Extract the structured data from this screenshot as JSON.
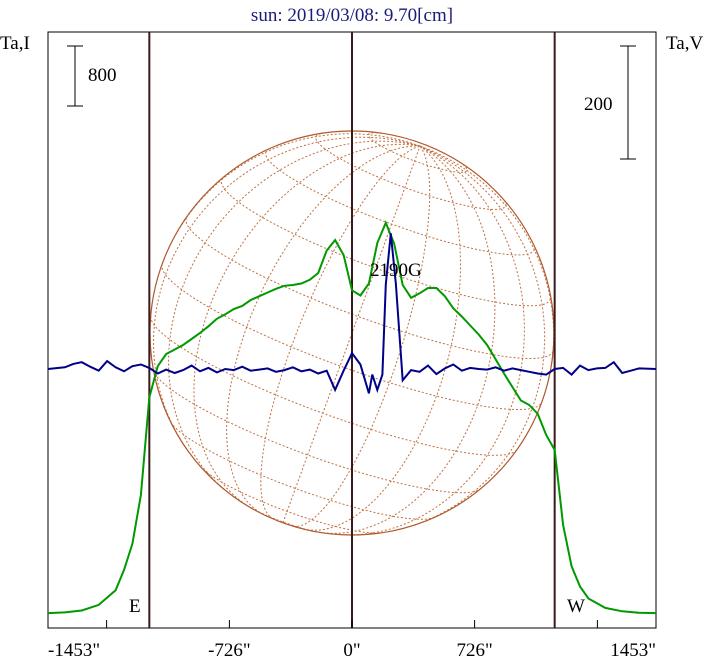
{
  "header": {
    "title": "sun: 2019/03/08: 9.70[cm]"
  },
  "axis_labels": {
    "left": "Ta,I",
    "right": "Ta,V"
  },
  "scale_bars": {
    "left_label": "800",
    "right_label": "200"
  },
  "limb_labels": {
    "east": "E",
    "west": "W"
  },
  "annotation": "2190G",
  "colors": {
    "intensity": "#009900",
    "polarization": "#000088",
    "disk": "#b05a30",
    "grid": "#c07040",
    "vline": "#3a1a1a",
    "title": "#1a1a7a"
  },
  "chart_data": {
    "type": "line",
    "title": "sun: 2019/03/08: 9.70[cm]",
    "xlabel": "",
    "xlim": [
      -1800,
      1800
    ],
    "x_ticks": [
      -1453,
      -726,
      0,
      726,
      1453
    ],
    "x_tick_labels": [
      "-1453\"",
      "-726\"",
      "0\"",
      "726\"",
      "1453\""
    ],
    "limb_lines_x": [
      -1200,
      0,
      1200
    ],
    "series": [
      {
        "name": "",
        "axis": "left",
        "x": [
          -1800,
          -1700,
          -1600,
          -1500,
          -1400,
          -1350,
          -1300,
          -1250,
          -1200,
          -1150,
          -1100,
          -1050,
          -1000,
          -950,
          -900,
          -850,
          -800,
          -750,
          -700,
          -650,
          -600,
          -550,
          -500,
          -450,
          -400,
          -350,
          -300,
          -250,
          -200,
          -150,
          -100,
          -50,
          0,
          50,
          100,
          150,
          200,
          250,
          300,
          350,
          400,
          450,
          500,
          550,
          600,
          650,
          700,
          750,
          800,
          850,
          900,
          950,
          1000,
          1050,
          1100,
          1150,
          1200,
          1250,
          1300,
          1350,
          1400,
          1500,
          1600,
          1700,
          1800
        ],
        "y": [
          25,
          35,
          60,
          135,
          330,
          600,
          950,
          1600,
          2900,
          3320,
          3480,
          3540,
          3600,
          3680,
          3760,
          3850,
          3950,
          4010,
          4080,
          4120,
          4200,
          4250,
          4300,
          4350,
          4390,
          4400,
          4420,
          4470,
          4560,
          4860,
          5000,
          4800,
          4330,
          4260,
          4420,
          4960,
          5230,
          4950,
          4400,
          4230,
          4290,
          4360,
          4360,
          4250,
          4090,
          3980,
          3860,
          3740,
          3600,
          3410,
          3220,
          3040,
          2860,
          2800,
          2680,
          2400,
          2200,
          1200,
          650,
          380,
          220,
          95,
          50,
          30,
          25
        ],
        "scale_bar_value": 800
      },
      {
        "name": "",
        "axis": "right",
        "x": [
          -1800,
          -1700,
          -1650,
          -1600,
          -1550,
          -1500,
          -1450,
          -1400,
          -1350,
          -1300,
          -1250,
          -1200,
          -1150,
          -1100,
          -1050,
          -1000,
          -950,
          -900,
          -850,
          -800,
          -750,
          -700,
          -650,
          -600,
          -550,
          -500,
          -450,
          -400,
          -350,
          -300,
          -250,
          -200,
          -150,
          -100,
          -50,
          0,
          50,
          100,
          120,
          150,
          180,
          200,
          230,
          260,
          300,
          350,
          400,
          450,
          500,
          550,
          600,
          650,
          700,
          750,
          800,
          850,
          900,
          950,
          1000,
          1050,
          1100,
          1150,
          1200,
          1250,
          1300,
          1350,
          1400,
          1450,
          1500,
          1550,
          1600,
          1650,
          1700,
          1800
        ],
        "y": [
          0,
          3,
          9,
          12,
          4,
          -3,
          14,
          3,
          -4,
          5,
          8,
          2,
          -8,
          -1,
          -7,
          -2,
          6,
          -4,
          2,
          -6,
          0,
          -2,
          4,
          -3,
          -1,
          1,
          -5,
          -2,
          3,
          -4,
          -1,
          -8,
          -3,
          -37,
          -3,
          28,
          8,
          -43,
          -10,
          -37,
          -10,
          150,
          240,
          150,
          -20,
          -2,
          -5,
          6,
          -9,
          1,
          8,
          -3,
          2,
          0,
          -1,
          3,
          -3,
          1,
          -2,
          -5,
          -8,
          -10,
          0,
          2,
          -10,
          6,
          -2,
          1,
          2,
          12,
          -7,
          -3,
          1,
          0
        ],
        "scale_bar_value": 200
      }
    ],
    "annotations": [
      {
        "text": "2190G",
        "x": 230
      }
    ]
  }
}
